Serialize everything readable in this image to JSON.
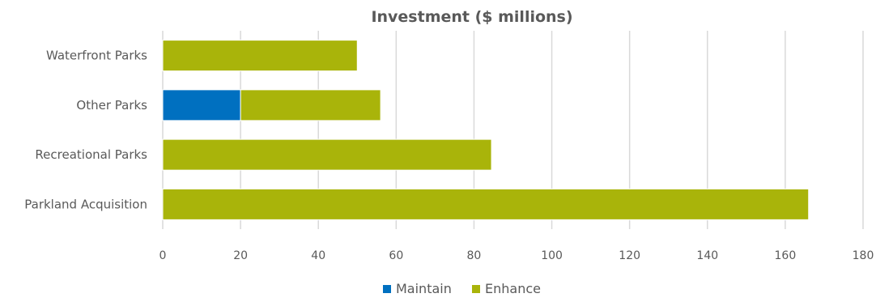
{
  "chart_data": {
    "type": "bar",
    "orientation": "horizontal",
    "stacked": true,
    "title": "Investment ($ millions)",
    "categories": [
      "Waterfront Parks",
      "Other Parks",
      "Recreational Parks",
      "Parkland Acquisition"
    ],
    "series": [
      {
        "name": "Maintain",
        "color": "#0070C0",
        "values": [
          0,
          20,
          0,
          0
        ]
      },
      {
        "name": "Enhance",
        "color": "#A9B40A",
        "values": [
          50,
          36,
          84.5,
          166
        ]
      }
    ],
    "xlim": [
      0,
      180
    ],
    "xticks": [
      "0",
      "20",
      "40",
      "60",
      "80",
      "100",
      "120",
      "140",
      "160",
      "180"
    ],
    "grid": true,
    "legend": "bottom"
  }
}
